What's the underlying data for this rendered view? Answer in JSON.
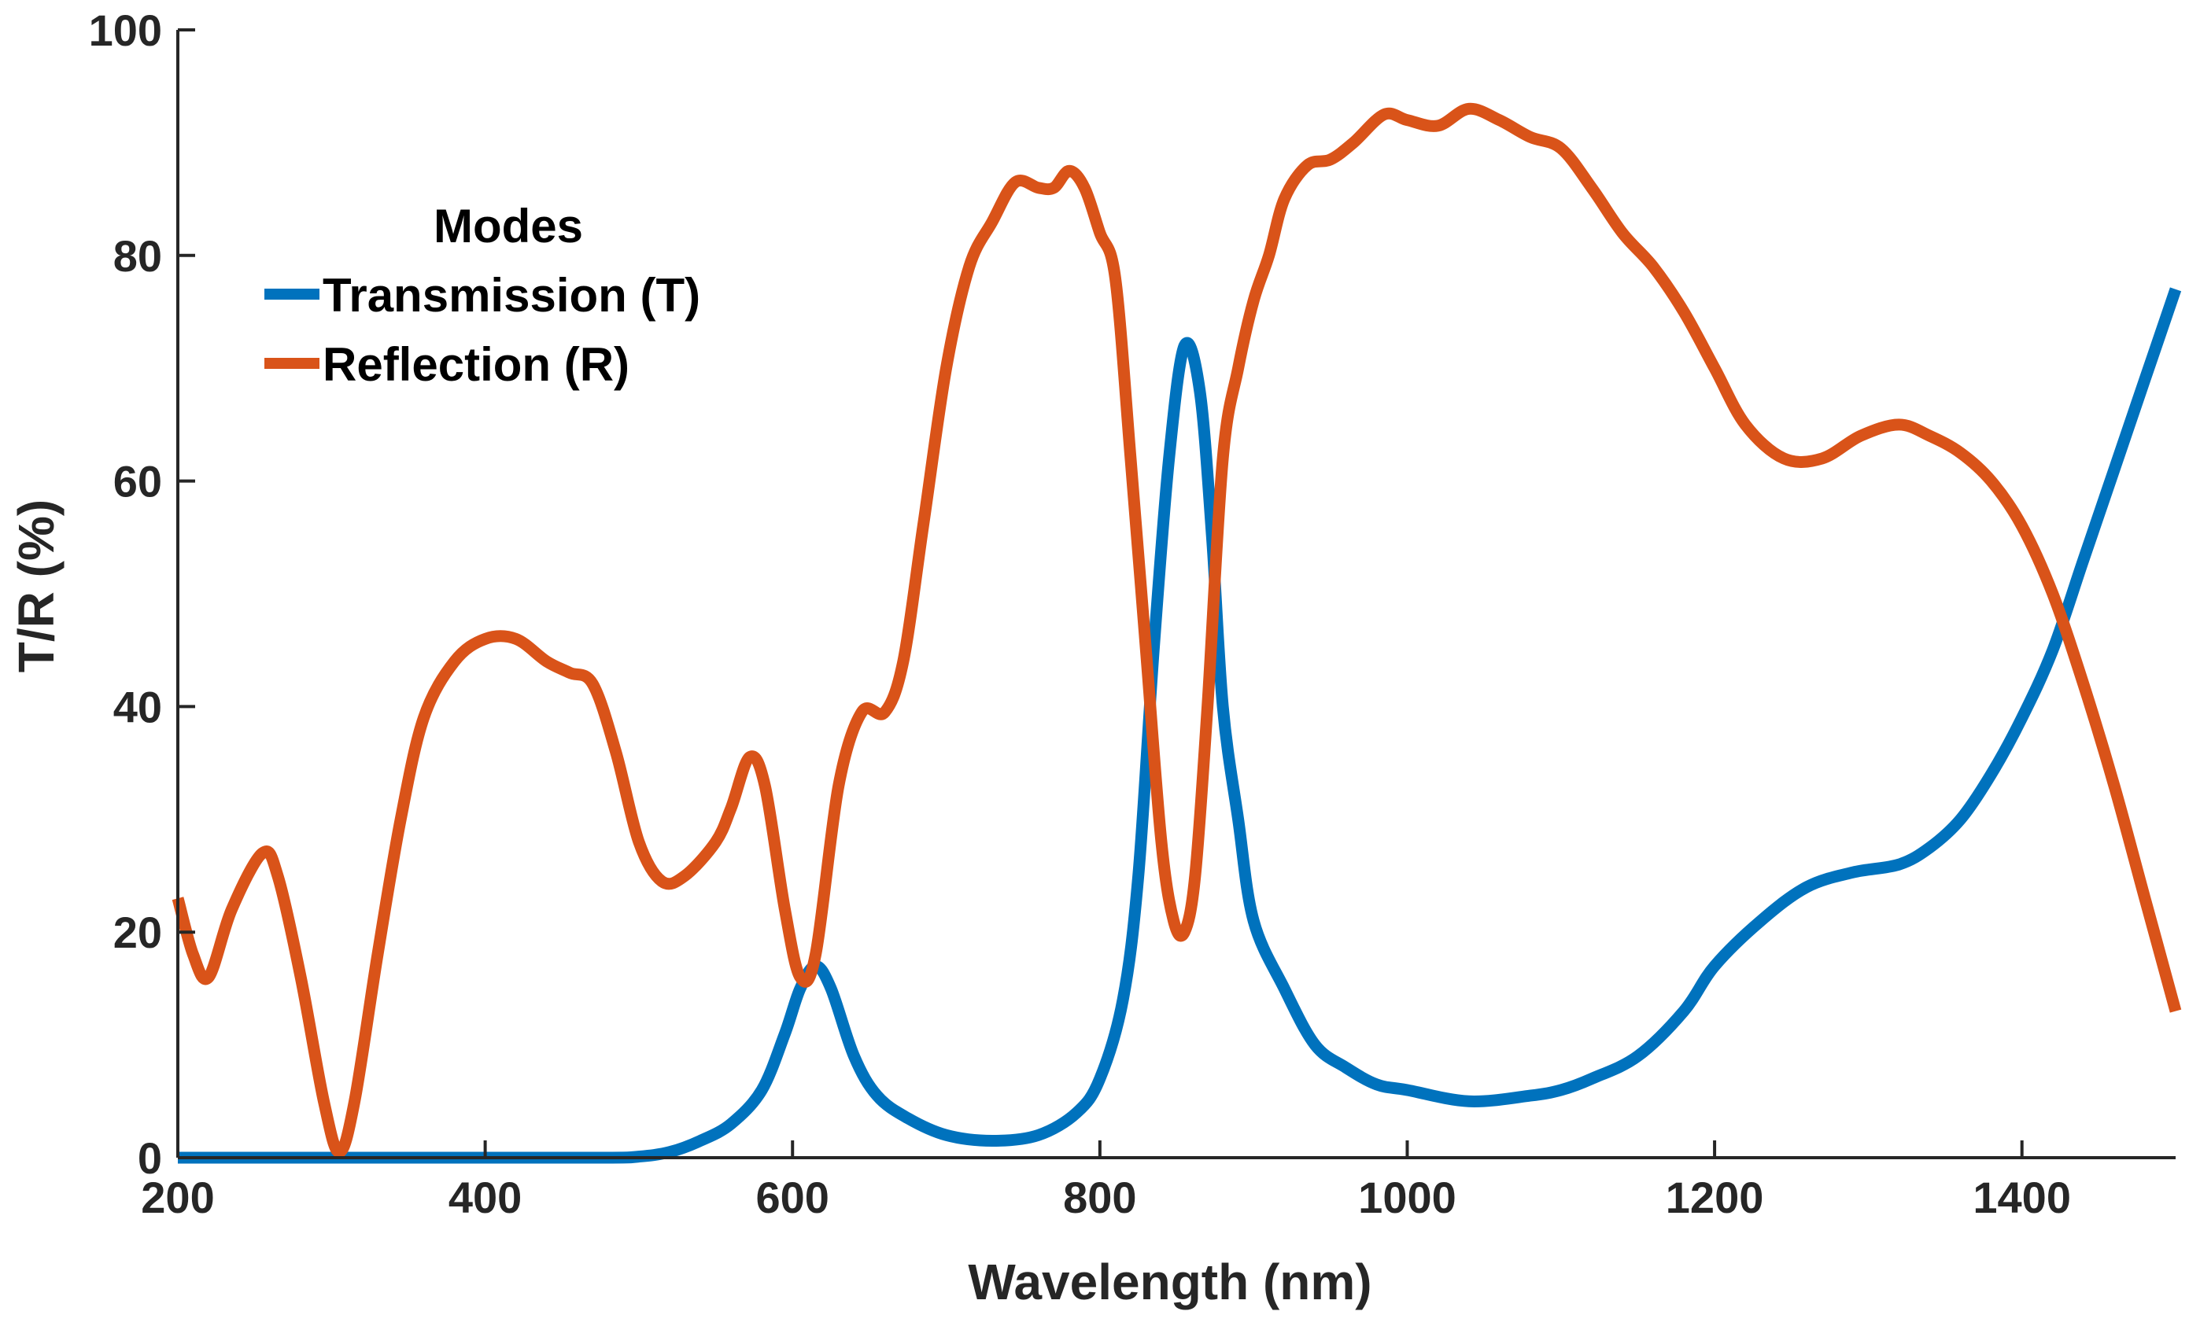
{
  "chart_data": {
    "type": "line",
    "title": "",
    "xlabel": "Wavelength (nm)",
    "ylabel": "T/R (%)",
    "xlim": [
      200,
      1500
    ],
    "ylim": [
      0,
      100
    ],
    "x_ticks": [
      200,
      400,
      600,
      800,
      1000,
      1200,
      1400
    ],
    "y_ticks": [
      0,
      20,
      40,
      60,
      80,
      100
    ],
    "grid": false,
    "legend": {
      "title": "Modes",
      "placement": "upper-left"
    },
    "series": [
      {
        "name": "Transmission (T)",
        "color": "#0072BD",
        "points": [
          [
            200,
            0
          ],
          [
            300,
            0
          ],
          [
            400,
            0
          ],
          [
            480,
            0
          ],
          [
            500,
            0.1
          ],
          [
            520,
            0.5
          ],
          [
            540,
            1.5
          ],
          [
            560,
            3
          ],
          [
            580,
            6
          ],
          [
            595,
            11
          ],
          [
            605,
            15
          ],
          [
            615,
            17
          ],
          [
            625,
            15
          ],
          [
            640,
            9
          ],
          [
            655,
            5.5
          ],
          [
            675,
            3.5
          ],
          [
            700,
            2
          ],
          [
            730,
            1.5
          ],
          [
            760,
            2
          ],
          [
            785,
            4
          ],
          [
            800,
            7
          ],
          [
            815,
            14
          ],
          [
            825,
            25
          ],
          [
            835,
            45
          ],
          [
            845,
            62
          ],
          [
            855,
            72
          ],
          [
            865,
            68
          ],
          [
            873,
            55
          ],
          [
            880,
            40
          ],
          [
            890,
            30
          ],
          [
            900,
            21
          ],
          [
            920,
            15
          ],
          [
            940,
            10
          ],
          [
            960,
            8
          ],
          [
            980,
            6.5
          ],
          [
            1000,
            6
          ],
          [
            1040,
            5
          ],
          [
            1080,
            5.5
          ],
          [
            1100,
            6
          ],
          [
            1120,
            7
          ],
          [
            1150,
            9
          ],
          [
            1180,
            13
          ],
          [
            1200,
            17
          ],
          [
            1230,
            21
          ],
          [
            1260,
            24
          ],
          [
            1290,
            25.3
          ],
          [
            1320,
            26
          ],
          [
            1340,
            27.5
          ],
          [
            1360,
            30
          ],
          [
            1380,
            34
          ],
          [
            1400,
            39
          ],
          [
            1420,
            45
          ],
          [
            1440,
            53
          ],
          [
            1460,
            61
          ],
          [
            1480,
            69
          ],
          [
            1500,
            77
          ]
        ]
      },
      {
        "name": "Reflection (R)",
        "color": "#D95319",
        "points": [
          [
            200,
            23
          ],
          [
            210,
            18
          ],
          [
            220,
            16
          ],
          [
            235,
            22
          ],
          [
            255,
            27
          ],
          [
            265,
            25
          ],
          [
            280,
            16
          ],
          [
            295,
            5
          ],
          [
            305,
            0.5
          ],
          [
            315,
            5
          ],
          [
            330,
            18
          ],
          [
            345,
            30
          ],
          [
            360,
            39
          ],
          [
            380,
            44
          ],
          [
            400,
            46
          ],
          [
            420,
            46
          ],
          [
            440,
            44
          ],
          [
            455,
            43
          ],
          [
            470,
            42
          ],
          [
            485,
            36
          ],
          [
            500,
            28
          ],
          [
            515,
            24.5
          ],
          [
            530,
            25
          ],
          [
            550,
            28
          ],
          [
            560,
            31
          ],
          [
            572,
            35.5
          ],
          [
            582,
            33
          ],
          [
            595,
            22
          ],
          [
            605,
            16
          ],
          [
            615,
            18
          ],
          [
            630,
            33
          ],
          [
            645,
            39.5
          ],
          [
            660,
            39.5
          ],
          [
            672,
            44
          ],
          [
            685,
            56
          ],
          [
            700,
            70
          ],
          [
            715,
            79
          ],
          [
            730,
            83
          ],
          [
            745,
            86.5
          ],
          [
            760,
            86
          ],
          [
            770,
            86
          ],
          [
            780,
            87.5
          ],
          [
            790,
            86
          ],
          [
            800,
            82
          ],
          [
            810,
            78
          ],
          [
            820,
            62
          ],
          [
            830,
            45
          ],
          [
            840,
            28
          ],
          [
            848,
            21
          ],
          [
            855,
            20
          ],
          [
            862,
            25
          ],
          [
            870,
            40
          ],
          [
            880,
            62
          ],
          [
            890,
            70
          ],
          [
            900,
            76
          ],
          [
            910,
            80
          ],
          [
            920,
            85
          ],
          [
            935,
            88
          ],
          [
            950,
            88.5
          ],
          [
            965,
            90
          ],
          [
            985,
            92.5
          ],
          [
            1000,
            92
          ],
          [
            1020,
            91.5
          ],
          [
            1040,
            93
          ],
          [
            1060,
            92
          ],
          [
            1080,
            90.5
          ],
          [
            1100,
            89.5
          ],
          [
            1120,
            86
          ],
          [
            1140,
            82
          ],
          [
            1160,
            79
          ],
          [
            1180,
            75
          ],
          [
            1200,
            70
          ],
          [
            1220,
            65
          ],
          [
            1245,
            62
          ],
          [
            1270,
            62
          ],
          [
            1295,
            64
          ],
          [
            1320,
            65
          ],
          [
            1340,
            64
          ],
          [
            1360,
            62.5
          ],
          [
            1380,
            60
          ],
          [
            1400,
            56
          ],
          [
            1420,
            50
          ],
          [
            1440,
            42
          ],
          [
            1460,
            33
          ],
          [
            1480,
            23
          ],
          [
            1500,
            13
          ]
        ]
      }
    ]
  }
}
